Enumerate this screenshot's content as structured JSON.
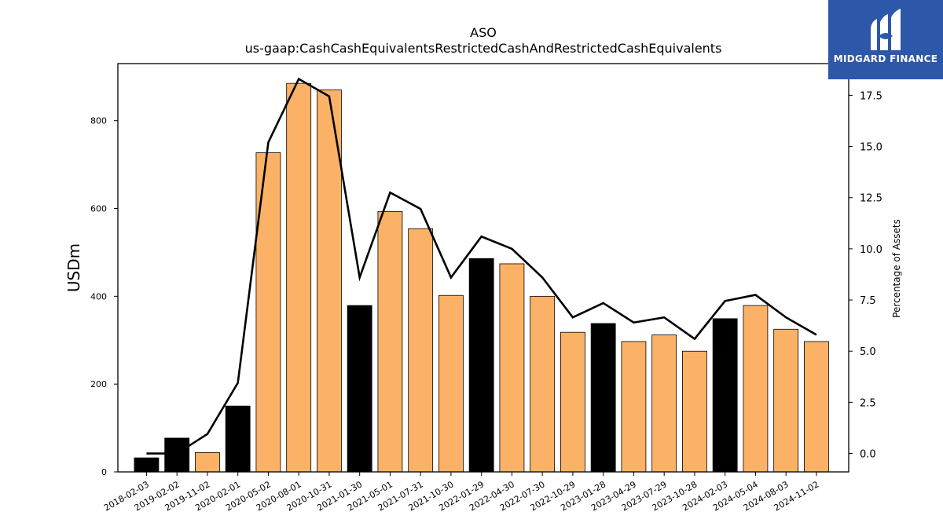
{
  "chart_data": {
    "type": "bar",
    "title": "ASO",
    "subtitle": "us-gaap:CashCashEquivalentsRestrictedCashAndRestrictedCashEquivalents",
    "ylabel": "USDm",
    "y2label": "Percentage of Assets",
    "categories": [
      "2018-02-03",
      "2019-02-02",
      "2019-11-02",
      "2020-02-01",
      "2020-05-02",
      "2020-08-01",
      "2020-10-31",
      "2021-01-30",
      "2021-05-01",
      "2021-07-31",
      "2021-10-30",
      "2022-01-29",
      "2022-04-30",
      "2022-07-30",
      "2022-10-29",
      "2023-01-28",
      "2023-04-29",
      "2023-07-29",
      "2023-10-28",
      "2024-02-03",
      "2024-05-04",
      "2024-08-03",
      "2024-11-02"
    ],
    "series": [
      {
        "type": "bar",
        "axis": "left",
        "values": [
          32,
          77,
          44,
          150,
          727,
          885,
          870,
          379,
          593,
          554,
          402,
          486,
          474,
          400,
          318,
          338,
          297,
          312,
          275,
          349,
          379,
          325,
          297
        ],
        "colors": [
          "#000000",
          "#000000",
          "#fbb266",
          "#000000",
          "#fbb266",
          "#fbb266",
          "#fbb266",
          "#000000",
          "#fbb266",
          "#fbb266",
          "#fbb266",
          "#000000",
          "#fbb266",
          "#fbb266",
          "#fbb266",
          "#000000",
          "#fbb266",
          "#fbb266",
          "#fbb266",
          "#000000",
          "#fbb266",
          "#fbb266",
          "#fbb266"
        ]
      },
      {
        "type": "line",
        "axis": "right",
        "values": [
          0.0,
          0.0,
          0.95,
          3.45,
          15.2,
          18.3,
          17.45,
          8.6,
          12.75,
          11.95,
          8.6,
          10.6,
          10.0,
          8.6,
          6.65,
          7.35,
          6.4,
          6.65,
          5.6,
          7.45,
          7.75,
          6.65,
          5.8
        ],
        "color": "#000000"
      }
    ],
    "ylim": [
      0,
      930
    ],
    "yticks": [
      0,
      200,
      400,
      600,
      800
    ],
    "y2lim": [
      -0.9,
      19.05
    ],
    "y2ticks": [
      0.0,
      2.5,
      5.0,
      7.5,
      10.0,
      12.5,
      15.0,
      17.5
    ],
    "grid": false,
    "legend": "none"
  },
  "logo": {
    "text": "MIDGARD FINANCE",
    "color": "#2d57a8"
  }
}
